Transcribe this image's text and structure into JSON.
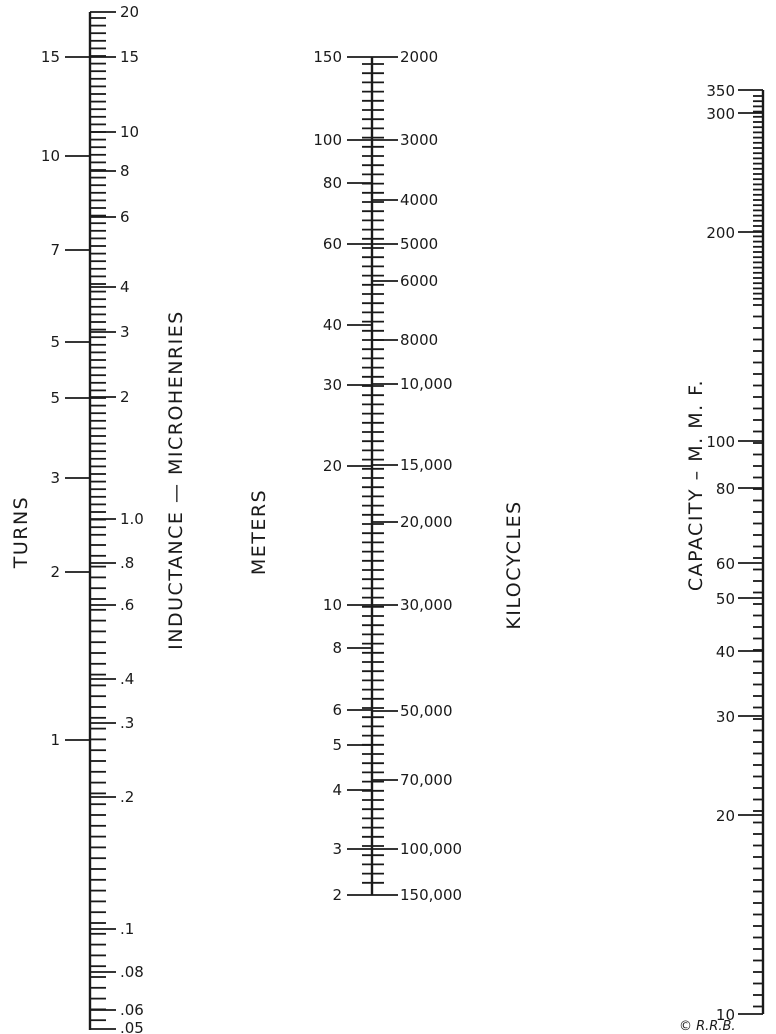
{
  "scales": {
    "turns": {
      "title": "TURNS",
      "labels": [
        "15",
        "10",
        "7",
        "5",
        "5",
        "3",
        "2",
        "1"
      ]
    },
    "inductance": {
      "title": "INDUCTANCE — MICROHENRIES",
      "labels": [
        "20",
        "15",
        "10",
        "8",
        "6",
        "4",
        "3",
        "2",
        "1.0",
        ".8",
        ".6",
        ".4",
        ".3",
        ".2",
        ".1",
        ".08",
        ".06",
        ".05"
      ]
    },
    "meters": {
      "title": "METERS",
      "labels": [
        "150",
        "100",
        "80",
        "60",
        "40",
        "30",
        "20",
        "10",
        "8",
        "6",
        "5",
        "4",
        "3",
        "2"
      ]
    },
    "kilocycles": {
      "title": "KILOCYCLES",
      "labels": [
        "2000",
        "3000",
        "4000",
        "5000",
        "6000",
        "8000",
        "10,000",
        "15,000",
        "20,000",
        "30,000",
        "50,000",
        "70,000",
        "100,000",
        "150,000"
      ]
    },
    "capacity": {
      "title": "CAPACITY – M. M. F.",
      "labels": [
        "350",
        "300",
        "200",
        "100",
        "80",
        "60",
        "50",
        "40",
        "30",
        "20",
        "10"
      ]
    }
  },
  "credit": "© R.R.B."
}
